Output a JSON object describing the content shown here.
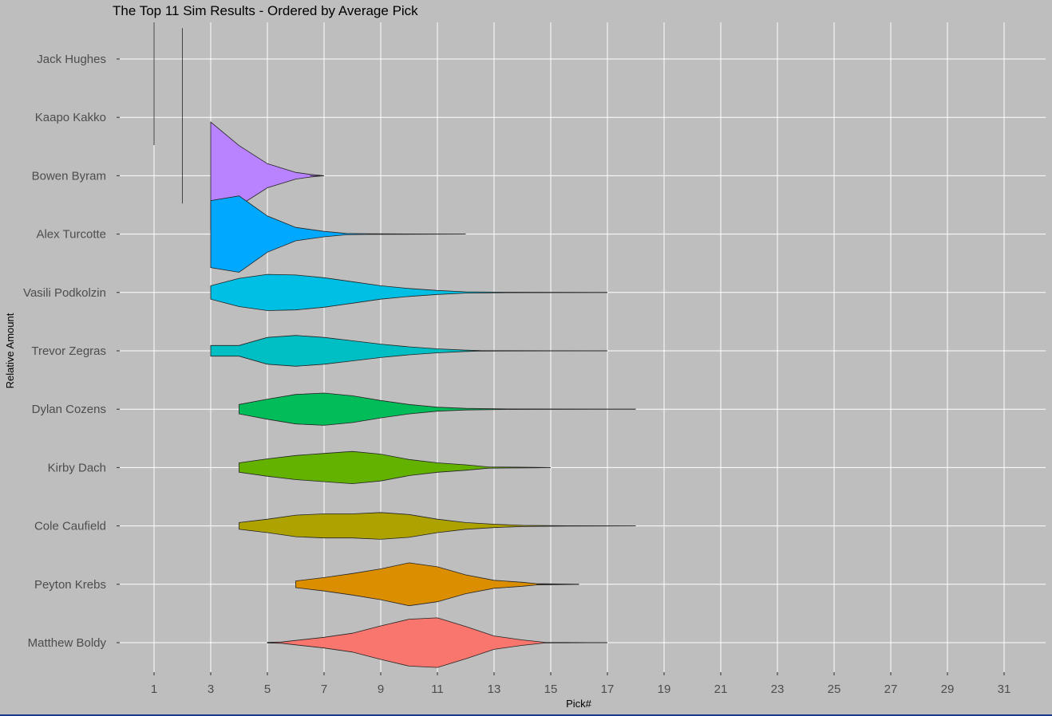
{
  "chart_data": {
    "type": "violin",
    "title": "The Top 11 Sim Results - Ordered by Average Pick",
    "xlabel": "Pick#",
    "ylabel": "Relative Amount",
    "xlim": [
      0.3,
      32.5
    ],
    "xticks": [
      1,
      3,
      5,
      7,
      9,
      11,
      13,
      15,
      17,
      19,
      21,
      23,
      25,
      27,
      29,
      31
    ],
    "grid": true,
    "series": [
      {
        "name": "Jack Hughes",
        "color": "#000000",
        "line_only": true,
        "min": 1,
        "max": 1,
        "profile": []
      },
      {
        "name": "Kaapo Kakko",
        "color": "#000000",
        "line_only": true,
        "min": 2,
        "max": 2,
        "profile": []
      },
      {
        "name": "Bowen Byram",
        "color": "#B983FF",
        "min": 3,
        "max": 7,
        "profile": [
          [
            3,
            0.8
          ],
          [
            4,
            0.45
          ],
          [
            5,
            0.18
          ],
          [
            6,
            0.05
          ],
          [
            6.5,
            0.02
          ],
          [
            7,
            0
          ]
        ]
      },
      {
        "name": "Alex Turcotte",
        "color": "#00A9FF",
        "min": 3,
        "max": 12,
        "profile": [
          [
            3,
            0.5
          ],
          [
            4,
            0.57
          ],
          [
            5,
            0.27
          ],
          [
            6,
            0.1
          ],
          [
            7,
            0.04
          ],
          [
            7.8,
            0.01
          ],
          [
            8.5,
            0.005
          ],
          [
            12,
            0
          ]
        ]
      },
      {
        "name": "Vasili Podkolzin",
        "color": "#00BFE4",
        "min": 3,
        "max": 17,
        "profile": [
          [
            3,
            0.1
          ],
          [
            4,
            0.21
          ],
          [
            5,
            0.27
          ],
          [
            6,
            0.26
          ],
          [
            7,
            0.22
          ],
          [
            8,
            0.16
          ],
          [
            9,
            0.1
          ],
          [
            10,
            0.06
          ],
          [
            11,
            0.03
          ],
          [
            12,
            0.01
          ],
          [
            13.5,
            0.004
          ],
          [
            17,
            0
          ]
        ]
      },
      {
        "name": "Trevor Zegras",
        "color": "#00BFC4",
        "min": 3,
        "max": 17,
        "profile": [
          [
            3,
            0.08
          ],
          [
            4,
            0.08
          ],
          [
            5,
            0.2
          ],
          [
            6,
            0.23
          ],
          [
            7,
            0.2
          ],
          [
            8,
            0.15
          ],
          [
            9,
            0.1
          ],
          [
            10,
            0.06
          ],
          [
            11,
            0.03
          ],
          [
            12,
            0.01
          ],
          [
            12.5,
            0.003
          ],
          [
            17,
            0
          ]
        ]
      },
      {
        "name": "Dylan Cozens",
        "color": "#00BC59",
        "min": 4,
        "max": 18,
        "profile": [
          [
            4,
            0.07
          ],
          [
            5,
            0.15
          ],
          [
            6,
            0.22
          ],
          [
            7,
            0.24
          ],
          [
            8,
            0.2
          ],
          [
            9,
            0.13
          ],
          [
            10,
            0.07
          ],
          [
            11,
            0.03
          ],
          [
            12,
            0.012
          ],
          [
            13.5,
            0.003
          ],
          [
            18,
            0
          ]
        ]
      },
      {
        "name": "Kirby Dach",
        "color": "#64B200",
        "min": 4,
        "max": 15,
        "profile": [
          [
            4,
            0.07
          ],
          [
            5,
            0.13
          ],
          [
            6,
            0.18
          ],
          [
            7,
            0.21
          ],
          [
            8,
            0.24
          ],
          [
            9,
            0.2
          ],
          [
            10,
            0.12
          ],
          [
            11,
            0.07
          ],
          [
            12,
            0.04
          ],
          [
            12.8,
            0.01
          ],
          [
            14.5,
            0.004
          ],
          [
            15,
            0
          ]
        ]
      },
      {
        "name": "Cole Caufield",
        "color": "#AEA200",
        "min": 4,
        "max": 18,
        "profile": [
          [
            4,
            0.05
          ],
          [
            5,
            0.1
          ],
          [
            6,
            0.16
          ],
          [
            7,
            0.18
          ],
          [
            8,
            0.18
          ],
          [
            9,
            0.2
          ],
          [
            10,
            0.17
          ],
          [
            11,
            0.1
          ],
          [
            12,
            0.05
          ],
          [
            13,
            0.025
          ],
          [
            14,
            0.008
          ],
          [
            15.5,
            0.002
          ],
          [
            18,
            0
          ]
        ]
      },
      {
        "name": "Peyton Krebs",
        "color": "#DB8E00",
        "min": 6,
        "max": 16,
        "profile": [
          [
            6,
            0.05
          ],
          [
            7,
            0.1
          ],
          [
            8,
            0.16
          ],
          [
            9,
            0.23
          ],
          [
            10,
            0.32
          ],
          [
            11,
            0.26
          ],
          [
            12,
            0.14
          ],
          [
            13,
            0.06
          ],
          [
            14,
            0.03
          ],
          [
            14.5,
            0.01
          ],
          [
            16,
            0
          ]
        ]
      },
      {
        "name": "Matthew Boldy",
        "color": "#F8766D",
        "min": 5,
        "max": 17,
        "profile": [
          [
            5,
            0.003
          ],
          [
            5.5,
            0.01
          ],
          [
            7,
            0.08
          ],
          [
            8,
            0.14
          ],
          [
            9,
            0.25
          ],
          [
            10,
            0.35
          ],
          [
            11,
            0.37
          ],
          [
            12,
            0.24
          ],
          [
            13,
            0.1
          ],
          [
            14,
            0.04
          ],
          [
            14.8,
            0.005
          ],
          [
            17,
            0
          ]
        ]
      }
    ]
  }
}
